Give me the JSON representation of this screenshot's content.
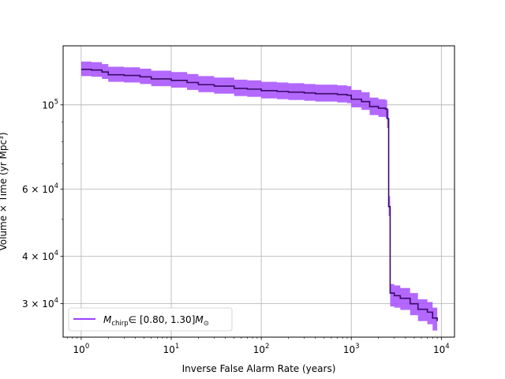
{
  "chart_data": {
    "type": "line",
    "title": "",
    "xlabel": "Inverse False Alarm Rate (years)",
    "ylabel": "Volume × Time (yr Mpc³)",
    "xscale": "log",
    "yscale": "log",
    "xlim": [
      0.63,
      14000
    ],
    "ylim": [
      24500,
      143000
    ],
    "grid": true,
    "legend_position": "lower-left",
    "x_ticks": [
      {
        "value": 1,
        "base": "10",
        "exp": "0"
      },
      {
        "value": 10,
        "base": "10",
        "exp": "1"
      },
      {
        "value": 100,
        "base": "10",
        "exp": "2"
      },
      {
        "value": 1000,
        "base": "10",
        "exp": "3"
      },
      {
        "value": 10000,
        "base": "10",
        "exp": "4"
      }
    ],
    "y_ticks": [
      {
        "value": 100000,
        "mant": "10",
        "exp": "5"
      },
      {
        "value": 60000,
        "mant": "6 × 10",
        "exp": "4"
      },
      {
        "value": 40000,
        "mant": "4 × 10",
        "exp": "4"
      },
      {
        "value": 30000,
        "mant": "3 × 10",
        "exp": "4"
      }
    ],
    "series": [
      {
        "name": "M_chirp ∈ [0.80, 1.30] M_⊙",
        "legend_main": "M",
        "legend_sub": "chirp",
        "legend_range": "∈ [0.80, 1.30]",
        "legend_unit_main": "M",
        "legend_unit_sub": "⊙",
        "line_color": "#3a0a66",
        "legend_color": "#7f00ff",
        "band_color": "#a64dff",
        "x": [
          1.0,
          1.3,
          1.7,
          2.0,
          3.0,
          4.5,
          6.0,
          10,
          15,
          20,
          30,
          50,
          70,
          100,
          150,
          200,
          300,
          400,
          700,
          900,
          1000,
          1300,
          1600,
          2000,
          2400,
          2500,
          2600,
          2700,
          3000,
          3500,
          4500,
          5500,
          7000,
          8000,
          9000
        ],
        "y": [
          124000,
          123500,
          122000,
          120000,
          119500,
          118500,
          117000,
          116000,
          114500,
          113000,
          112000,
          110500,
          110000,
          109000,
          108500,
          108000,
          107500,
          107000,
          106500,
          106000,
          103500,
          102000,
          99000,
          98000,
          97500,
          92000,
          54000,
          32000,
          31500,
          31000,
          30000,
          29000,
          28500,
          27500,
          27000
        ],
        "upper": [
          130000,
          129500,
          128000,
          126000,
          125500,
          124500,
          123000,
          122000,
          120500,
          119000,
          118000,
          116500,
          116000,
          115000,
          114500,
          114000,
          113500,
          113000,
          112500,
          112000,
          109500,
          108000,
          104500,
          103500,
          103000,
          97500,
          57500,
          33800,
          33500,
          33000,
          32000,
          30800,
          30300,
          29300,
          28800
        ],
        "lower": [
          119000,
          118500,
          117000,
          115000,
          114500,
          113500,
          112000,
          111000,
          109500,
          108000,
          107000,
          105500,
          105000,
          104000,
          103500,
          103000,
          102500,
          102000,
          101500,
          101000,
          98500,
          97000,
          94000,
          93000,
          92500,
          87000,
          51000,
          29500,
          29300,
          28900,
          28000,
          27000,
          26500,
          25500,
          25200
        ]
      }
    ]
  }
}
